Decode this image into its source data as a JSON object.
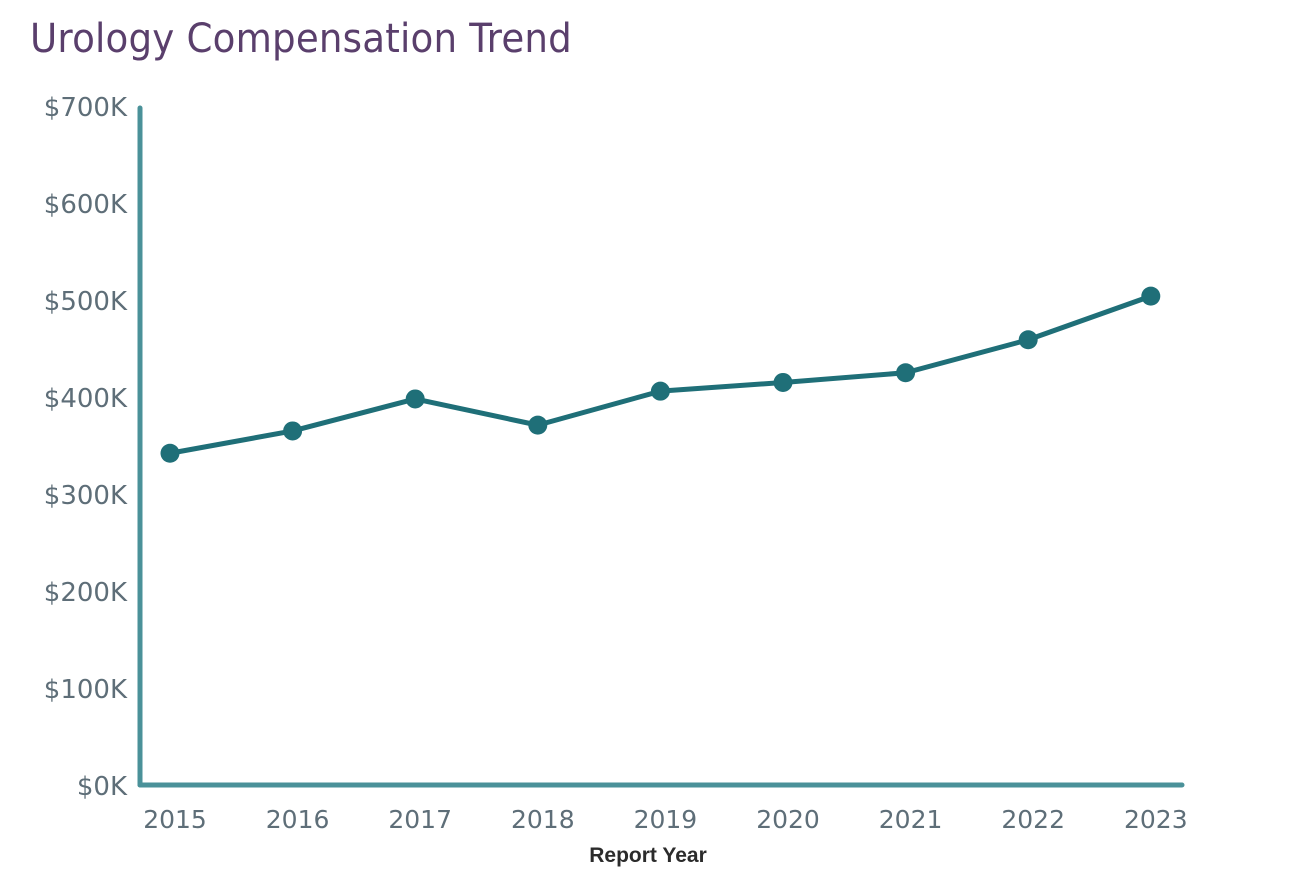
{
  "chart_data": {
    "type": "line",
    "title": "Urology Compensation Trend",
    "xlabel": "Report Year",
    "ylabel": "",
    "categories": [
      "2015",
      "2016",
      "2017",
      "2018",
      "2019",
      "2020",
      "2021",
      "2022",
      "2023"
    ],
    "series": [
      {
        "name": "Urology Compensation",
        "values": [
          342,
          365,
          398,
          371,
          406,
          415,
          425,
          459,
          504
        ]
      }
    ],
    "value_unit": "thousands USD",
    "ylim": [
      0,
      700
    ],
    "yticks": [
      "$0K",
      "$100K",
      "$200K",
      "$300K",
      "$400K",
      "$500K",
      "$600K",
      "$700K"
    ],
    "grid": false,
    "legend": "none",
    "colors": {
      "line": "#1f6f78",
      "axis": "#4a9199",
      "title": "#5a3f6c",
      "ticks": "#5e6e78"
    }
  }
}
